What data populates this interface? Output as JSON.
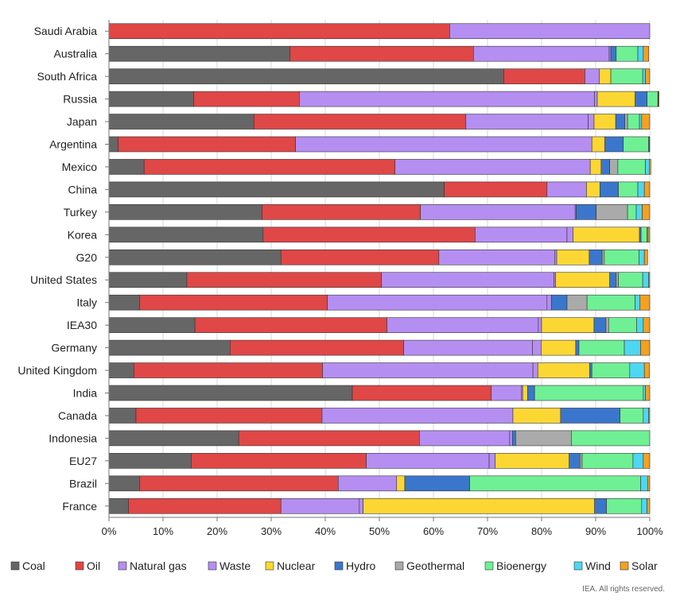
{
  "chart_data": {
    "type": "bar",
    "orientation": "horizontal",
    "stacked": true,
    "categories": [
      "Saudi Arabia",
      "Australia",
      "South Africa",
      "Russia",
      "Japan",
      "Argentina",
      "Mexico",
      "China",
      "Turkey",
      "Korea",
      "G20",
      "United States",
      "Italy",
      "IEA30",
      "Germany",
      "United Kingdom",
      "India",
      "Canada",
      "Indonesia",
      "EU27",
      "Brazil",
      "France"
    ],
    "series": [
      {
        "name": "Coal",
        "color": "#666666",
        "values": [
          0,
          33.5,
          73,
          15.7,
          26.8,
          1.7,
          6.5,
          62,
          28.3,
          28.5,
          31.8,
          14.4,
          5.7,
          15.9,
          22.4,
          4.6,
          45,
          5,
          24,
          15.2,
          5.7,
          3.6
        ]
      },
      {
        "name": "Oil",
        "color": "#e04747",
        "values": [
          63,
          33.9,
          15,
          19.5,
          39.2,
          32.8,
          46.4,
          19,
          29.3,
          39.2,
          29.2,
          36,
          34.7,
          35.5,
          32.1,
          34.9,
          25.7,
          34.4,
          33.4,
          32.4,
          36.7,
          28.2
        ]
      },
      {
        "name": "Natural gas",
        "color": "#b58ef2",
        "values": [
          37,
          25.1,
          2.7,
          54.6,
          22.6,
          54.8,
          36.1,
          7.3,
          28.6,
          17,
          21.4,
          31.9,
          40.6,
          28,
          23.8,
          38.9,
          5.6,
          35.3,
          16.7,
          22.7,
          10.8,
          14.5
        ]
      },
      {
        "name": "Waste",
        "color": "#b58ef2",
        "values": [
          0,
          0.3,
          0,
          0.5,
          1.1,
          0,
          0,
          0,
          0.2,
          1.1,
          0.4,
          0.3,
          0.8,
          0.6,
          1.6,
          0.9,
          0.2,
          0,
          0.5,
          1.1,
          0,
          0.7
        ]
      },
      {
        "name": "Nuclear",
        "color": "#fcd734",
        "values": [
          0,
          0,
          2.1,
          7,
          4,
          2.4,
          2,
          2.5,
          0,
          12.3,
          6,
          10,
          0,
          9.7,
          6.4,
          9.6,
          0.9,
          8.8,
          0,
          13.7,
          1.5,
          42.8
        ]
      },
      {
        "name": "Hydro",
        "color": "#3a77cc",
        "values": [
          0,
          1,
          0,
          2.2,
          1.7,
          3.4,
          1.6,
          3.4,
          3.7,
          0.3,
          2.4,
          1.2,
          2.9,
          2.2,
          0.6,
          0.4,
          1.3,
          11,
          0.6,
          2,
          12,
          2.2
        ]
      },
      {
        "name": "Geothermal",
        "color": "#aaaaaa",
        "values": [
          0,
          0,
          0,
          0,
          0.5,
          0,
          1.5,
          0,
          5.8,
          0,
          0.4,
          0.4,
          3.7,
          0.5,
          0,
          0,
          0,
          0,
          10.3,
          0.4,
          0,
          0
        ]
      },
      {
        "name": "Bioenergy",
        "color": "#6ff095",
        "values": [
          0,
          4,
          5.9,
          2,
          2.2,
          4.7,
          5.1,
          3.6,
          1.6,
          1.1,
          6.4,
          4.5,
          8.9,
          5.2,
          8.4,
          7,
          20.1,
          4.3,
          14.5,
          9.4,
          31.6,
          6.5
        ]
      },
      {
        "name": "Wind",
        "color": "#4dd7f2",
        "values": [
          0,
          1,
          0.5,
          0.1,
          0.4,
          0.1,
          0.7,
          1.2,
          1.1,
          0.2,
          1,
          1.1,
          0.9,
          1.2,
          3,
          2.7,
          0.4,
          1,
          0,
          1.9,
          1.3,
          1
        ]
      },
      {
        "name": "Solar",
        "color": "#f4a120",
        "values": [
          0,
          1,
          0.8,
          0.1,
          1.5,
          0.1,
          0.3,
          1,
          1.4,
          0.3,
          0.6,
          0.2,
          1.8,
          1.2,
          1.7,
          0.9,
          0.8,
          0.2,
          0,
          1.2,
          0.4,
          0.5
        ]
      }
    ],
    "xlim": [
      0,
      100
    ],
    "xticks": [
      "0%",
      "10%",
      "20%",
      "30%",
      "40%",
      "50%",
      "60%",
      "70%",
      "80%",
      "90%",
      "100%"
    ],
    "grid": true,
    "legend": "bottom",
    "legend_entries": [
      {
        "name": "Coal",
        "color": "#666666"
      },
      {
        "name": "Oil",
        "color": "#e04747"
      },
      {
        "name": "Natural gas",
        "color": "#b58ef2"
      },
      {
        "name": "Waste",
        "color": "#b58ef2"
      },
      {
        "name": "Nuclear",
        "color": "#fcd734"
      },
      {
        "name": "Hydro",
        "color": "#3a77cc"
      },
      {
        "name": "Geothermal",
        "color": "#aaaaaa"
      },
      {
        "name": "Bioenergy",
        "color": "#6ff095"
      },
      {
        "name": "Wind",
        "color": "#4dd7f2"
      },
      {
        "name": "Solar",
        "color": "#f4a120"
      }
    ]
  },
  "credit": "IEA. All rights reserved."
}
